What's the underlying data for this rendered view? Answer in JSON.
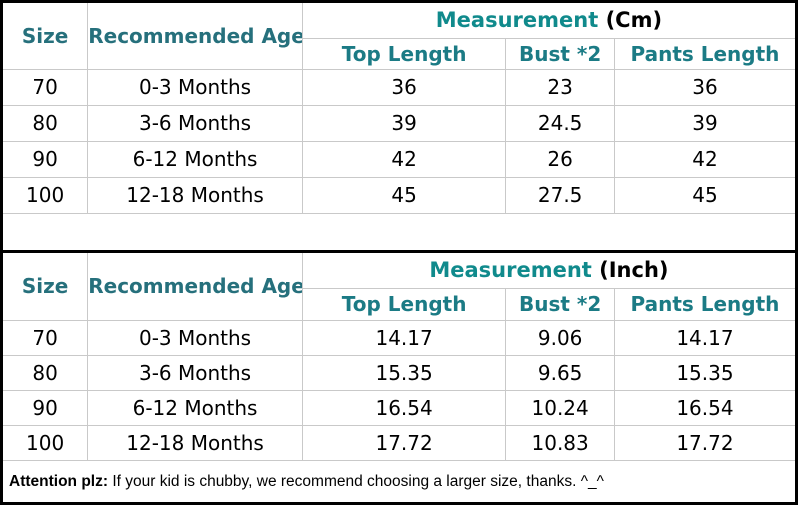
{
  "colors": {
    "header_teal_dark": "#26707C",
    "measurement_teal": "#108A8C",
    "subheader_teal": "#1B7B85",
    "border_gray": "#C9C9C9",
    "border_black": "#000000",
    "text": "#000000",
    "background": "#FFFFFF"
  },
  "chart_data": [
    {
      "type": "table",
      "title": "Measurement (Cm)",
      "header": {
        "size": "Size",
        "age": "Recommended Age",
        "measurement": "Measurement",
        "unit": "(Cm)",
        "sub_columns": [
          "Top Length",
          "Bust *2",
          "Pants Length"
        ]
      },
      "columns": [
        "Size",
        "Recommended Age",
        "Top Length",
        "Bust *2",
        "Pants Length"
      ],
      "rows": [
        [
          "70",
          "0-3 Months",
          "36",
          "23",
          "36"
        ],
        [
          "80",
          "3-6 Months",
          "39",
          "24.5",
          "39"
        ],
        [
          "90",
          "6-12 Months",
          "42",
          "26",
          "42"
        ],
        [
          "100",
          "12-18 Months",
          "45",
          "27.5",
          "45"
        ]
      ]
    },
    {
      "type": "table",
      "title": "Measurement (Inch)",
      "header": {
        "size": "Size",
        "age": "Recommended Age",
        "measurement": "Measurement",
        "unit": "(Inch)",
        "sub_columns": [
          "Top Length",
          "Bust *2",
          "Pants Length"
        ]
      },
      "columns": [
        "Size",
        "Recommended Age",
        "Top Length",
        "Bust *2",
        "Pants Length"
      ],
      "rows": [
        [
          "70",
          "0-3 Months",
          "14.17",
          "9.06",
          "14.17"
        ],
        [
          "80",
          "3-6 Months",
          "15.35",
          "9.65",
          "15.35"
        ],
        [
          "90",
          "6-12 Months",
          "16.54",
          "10.24",
          "16.54"
        ],
        [
          "100",
          "12-18 Months",
          "17.72",
          "10.83",
          "17.72"
        ]
      ]
    }
  ],
  "footer": {
    "bold_label": "Attention plz:",
    "text": " If your kid is chubby, we recommend choosing a larger size, thanks. ^_^"
  }
}
